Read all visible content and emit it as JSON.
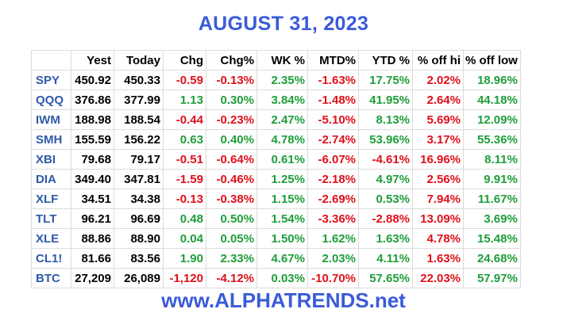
{
  "title": "AUGUST 31, 2023",
  "footer": "www.ALPHATRENDS.net",
  "headers": [
    "",
    "Yest",
    "Today",
    "Chg",
    "Chg%",
    "WK %",
    "MTD%",
    "YTD %",
    "% off hi",
    "% off low"
  ],
  "colors": {
    "title": "#3a5bd9",
    "symbol": "#2e5aa8",
    "positive": "#1e9e3a",
    "negative": "#e0101a",
    "neutral": "#000000"
  },
  "rows": [
    {
      "symbol": "SPY",
      "yest": "450.92",
      "today": "450.33",
      "chg": "-0.59",
      "chg_pct": "-0.13%",
      "wk": "2.35%",
      "mtd": "-1.63%",
      "ytd": "17.75%",
      "off_hi": "2.02%",
      "off_low": "18.96%"
    },
    {
      "symbol": "QQQ",
      "yest": "376.86",
      "today": "377.99",
      "chg": "1.13",
      "chg_pct": "0.30%",
      "wk": "3.84%",
      "mtd": "-1.48%",
      "ytd": "41.95%",
      "off_hi": "2.64%",
      "off_low": "44.18%"
    },
    {
      "symbol": "IWM",
      "yest": "188.98",
      "today": "188.54",
      "chg": "-0.44",
      "chg_pct": "-0.23%",
      "wk": "2.47%",
      "mtd": "-5.10%",
      "ytd": "8.13%",
      "off_hi": "5.69%",
      "off_low": "12.09%"
    },
    {
      "symbol": "SMH",
      "yest": "155.59",
      "today": "156.22",
      "chg": "0.63",
      "chg_pct": "0.40%",
      "wk": "4.78%",
      "mtd": "-2.74%",
      "ytd": "53.96%",
      "off_hi": "3.17%",
      "off_low": "55.36%"
    },
    {
      "symbol": "XBI",
      "yest": "79.68",
      "today": "79.17",
      "chg": "-0.51",
      "chg_pct": "-0.64%",
      "wk": "0.61%",
      "mtd": "-6.07%",
      "ytd": "-4.61%",
      "off_hi": "16.96%",
      "off_low": "8.11%"
    },
    {
      "symbol": "DIA",
      "yest": "349.40",
      "today": "347.81",
      "chg": "-1.59",
      "chg_pct": "-0.46%",
      "wk": "1.25%",
      "mtd": "-2.18%",
      "ytd": "4.97%",
      "off_hi": "2.56%",
      "off_low": "9.91%"
    },
    {
      "symbol": "XLF",
      "yest": "34.51",
      "today": "34.38",
      "chg": "-0.13",
      "chg_pct": "-0.38%",
      "wk": "1.15%",
      "mtd": "-2.69%",
      "ytd": "0.53%",
      "off_hi": "7.94%",
      "off_low": "11.67%"
    },
    {
      "symbol": "TLT",
      "yest": "96.21",
      "today": "96.69",
      "chg": "0.48",
      "chg_pct": "0.50%",
      "wk": "1.54%",
      "mtd": "-3.36%",
      "ytd": "-2.88%",
      "off_hi": "13.09%",
      "off_low": "3.69%"
    },
    {
      "symbol": "XLE",
      "yest": "88.86",
      "today": "88.90",
      "chg": "0.04",
      "chg_pct": "0.05%",
      "wk": "1.50%",
      "mtd": "1.62%",
      "ytd": "1.63%",
      "off_hi": "4.78%",
      "off_low": "15.48%"
    },
    {
      "symbol": "CL1!",
      "yest": "81.66",
      "today": "83.56",
      "chg": "1.90",
      "chg_pct": "2.33%",
      "wk": "4.67%",
      "mtd": "2.03%",
      "ytd": "4.11%",
      "off_hi": "1.63%",
      "off_low": "24.68%"
    },
    {
      "symbol": "BTC",
      "yest": "27,209",
      "today": "26,089",
      "chg": "-1,120",
      "chg_pct": "-4.12%",
      "wk": "0.03%",
      "mtd": "-10.70%",
      "ytd": "57.65%",
      "off_hi": "22.03%",
      "off_low": "57.97%"
    }
  ]
}
